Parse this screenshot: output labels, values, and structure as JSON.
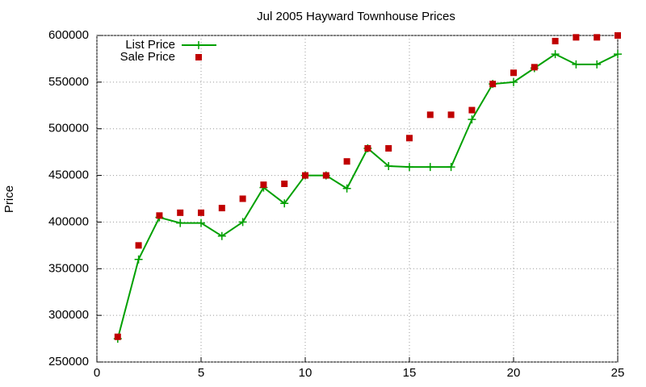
{
  "chart_data": {
    "type": "line",
    "title": "Jul 2005 Hayward Townhouse Prices",
    "y_label": "Price",
    "x": [
      1,
      2,
      3,
      4,
      5,
      6,
      7,
      8,
      9,
      10,
      11,
      12,
      13,
      14,
      15,
      16,
      17,
      18,
      19,
      20,
      21,
      22,
      23,
      24,
      25
    ],
    "series": [
      {
        "name": "List Price",
        "color": "#00a000",
        "style": "linespoints",
        "values": [
          275000,
          360000,
          405000,
          399000,
          399000,
          385000,
          400000,
          437000,
          420000,
          450000,
          450000,
          436000,
          479000,
          460000,
          459000,
          459000,
          459000,
          510000,
          548000,
          550000,
          565000,
          580000,
          569000,
          569000,
          580000
        ]
      },
      {
        "name": "Sale Price",
        "color": "#c00000",
        "style": "points",
        "values": [
          277000,
          375000,
          407000,
          410000,
          410000,
          415000,
          425000,
          440000,
          441000,
          450000,
          450000,
          465000,
          479000,
          479000,
          490000,
          515000,
          515000,
          520000,
          548000,
          560000,
          566000,
          594000,
          598000,
          598000,
          600000
        ]
      }
    ],
    "xlim": [
      0,
      25
    ],
    "xticks": [
      0,
      5,
      10,
      15,
      20,
      25
    ],
    "ylim": [
      250000,
      600000
    ],
    "yticks": [
      250000,
      300000,
      350000,
      400000,
      450000,
      500000,
      550000,
      600000
    ],
    "grid": true,
    "legend": "top-left"
  }
}
